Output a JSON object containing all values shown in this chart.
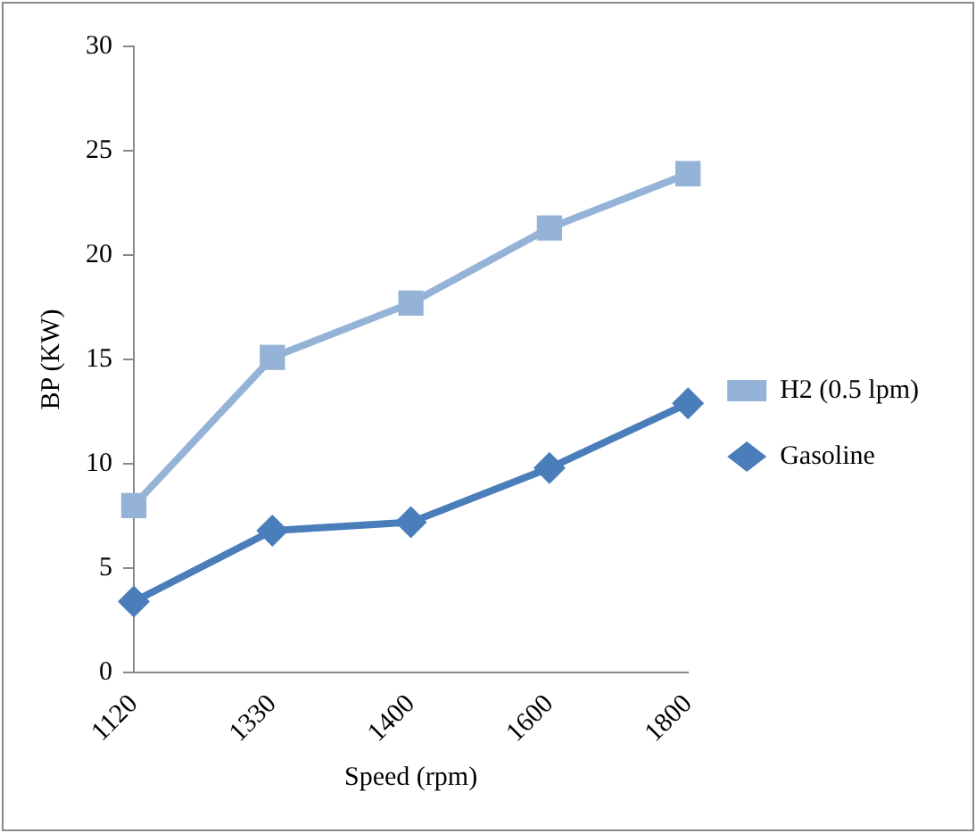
{
  "chart_data": {
    "type": "line",
    "xlabel": "Speed (rpm)",
    "ylabel": "BP (KW)",
    "categories": [
      "1120",
      "1330",
      "1400",
      "1600",
      "1800"
    ],
    "series": [
      {
        "name": "H2 (0.5 lpm)",
        "color": "#95b3d7",
        "values": [
          8,
          15.1,
          17.7,
          21.3,
          23.9
        ],
        "marker": "square"
      },
      {
        "name": "Gasoline",
        "color": "#4a7ebb",
        "values": [
          3.4,
          6.8,
          7.2,
          9.8,
          12.9
        ],
        "marker": "diamond"
      }
    ],
    "ylim": [
      0,
      30
    ],
    "yticks": [
      0,
      5,
      10,
      15,
      20,
      25,
      30
    ],
    "grid": false,
    "legend": "right",
    "line_style": "solid"
  }
}
